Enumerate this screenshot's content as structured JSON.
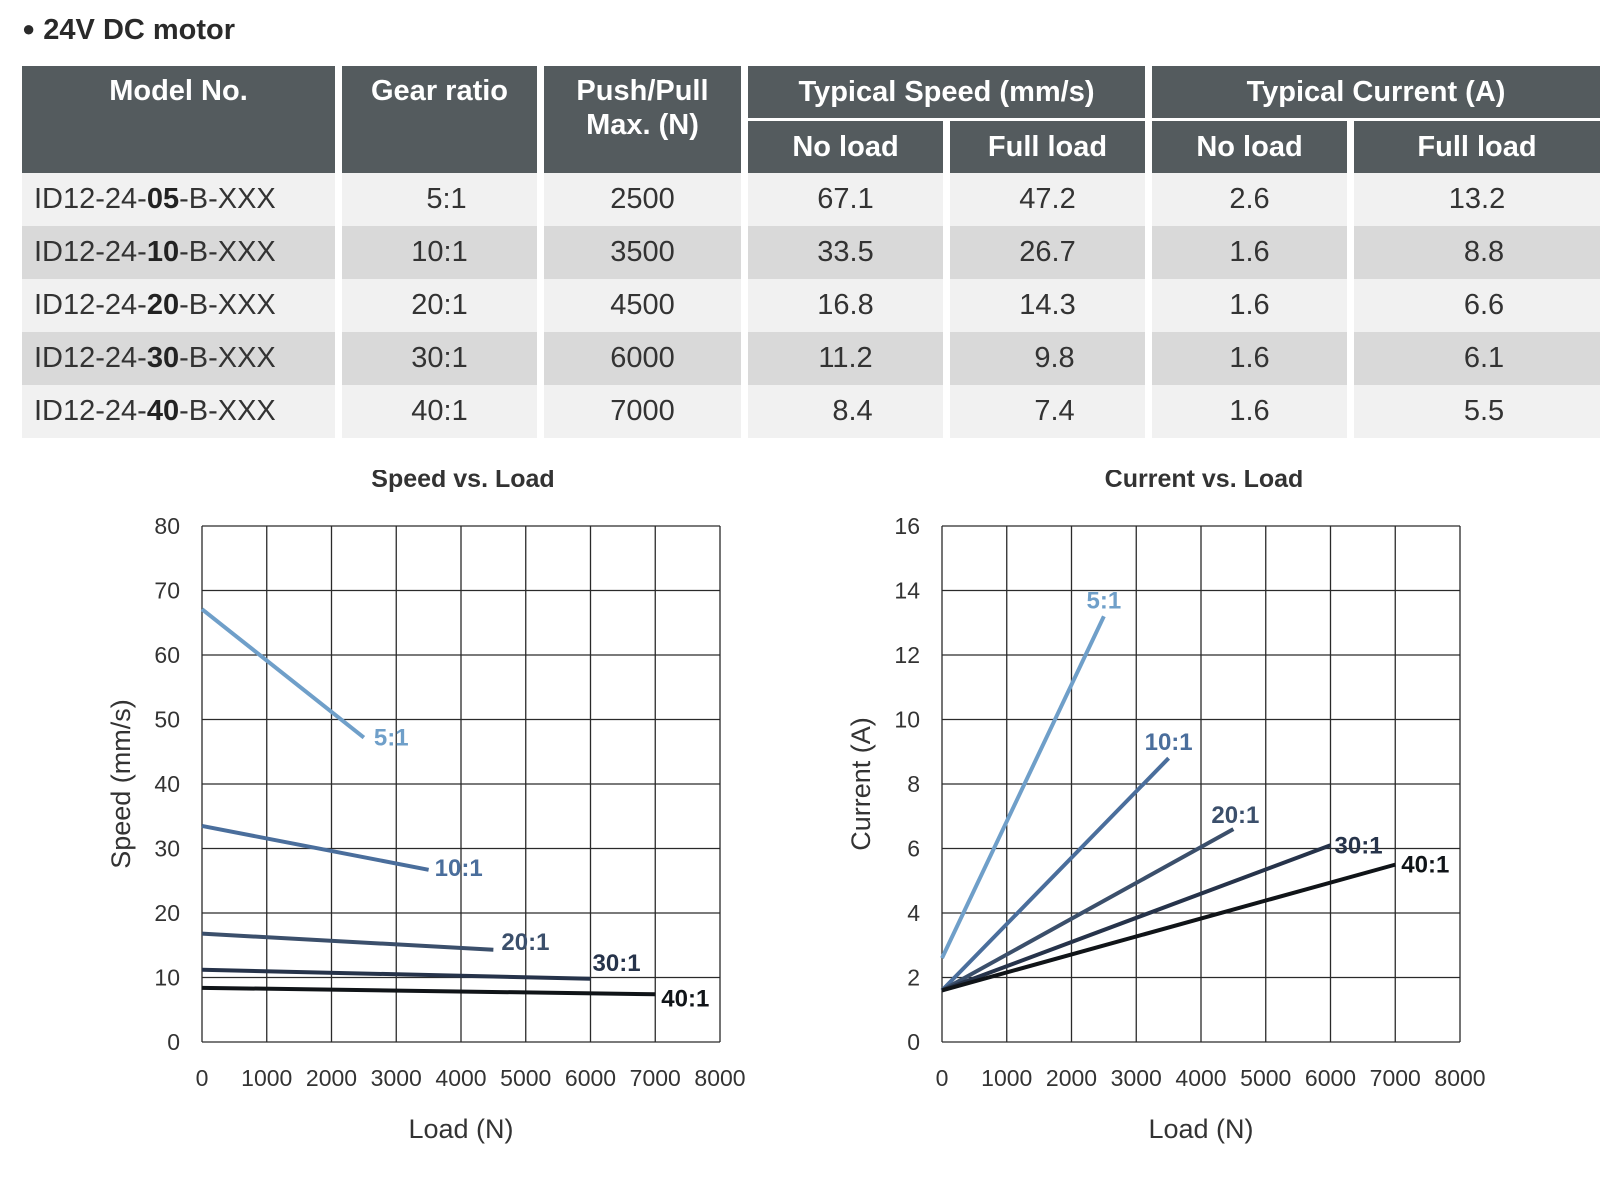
{
  "heading": "24V DC motor",
  "table": {
    "headers": {
      "model": "Model No.",
      "gear": "Gear ratio",
      "push_line1": "Push/Pull",
      "push_line2": "Max. (N)",
      "speed_group": "Typical Speed (mm/s)",
      "current_group": "Typical Current (A)",
      "no_load": "No load",
      "full_load": "Full load"
    },
    "rows": [
      {
        "model_prefix": "ID12-24-",
        "model_code": "05",
        "model_suffix": "-B-XXX",
        "gear": "5:1",
        "push": "2500",
        "speed_no": "67.1",
        "speed_full": "47.2",
        "current_no": "2.6",
        "current_full": "13.2"
      },
      {
        "model_prefix": "ID12-24-",
        "model_code": "10",
        "model_suffix": "-B-XXX",
        "gear": "10:1",
        "push": "3500",
        "speed_no": "33.5",
        "speed_full": "26.7",
        "current_no": "1.6",
        "current_full": "8.8"
      },
      {
        "model_prefix": "ID12-24-",
        "model_code": "20",
        "model_suffix": "-B-XXX",
        "gear": "20:1",
        "push": "4500",
        "speed_no": "16.8",
        "speed_full": "14.3",
        "current_no": "1.6",
        "current_full": "6.6"
      },
      {
        "model_prefix": "ID12-24-",
        "model_code": "30",
        "model_suffix": "-B-XXX",
        "gear": "30:1",
        "push": "6000",
        "speed_no": "11.2",
        "speed_full": "9.8",
        "current_no": "1.6",
        "current_full": "6.1"
      },
      {
        "model_prefix": "ID12-24-",
        "model_code": "40",
        "model_suffix": "-B-XXX",
        "gear": "40:1",
        "push": "7000",
        "speed_no": "8.4",
        "speed_full": "7.4",
        "current_no": "1.6",
        "current_full": "5.5"
      }
    ]
  },
  "colors": {
    "5:1": "#6f9fc9",
    "10:1": "#4a6e9c",
    "20:1": "#3b4f6b",
    "30:1": "#26334a",
    "40:1": "#101418",
    "header_bg": "#545b5e",
    "row_light": "#f1f1f1",
    "row_dark": "#d9d9d9"
  },
  "chart_data": [
    {
      "id": "speed",
      "type": "line",
      "title": "Speed vs. Load",
      "xlabel": "Load (N)",
      "ylabel": "Speed (mm/s)",
      "xlim": [
        0,
        8000
      ],
      "ylim": [
        0,
        80
      ],
      "xticks": [
        0,
        1000,
        2000,
        3000,
        4000,
        5000,
        6000,
        7000,
        8000
      ],
      "yticks": [
        0,
        10,
        20,
        30,
        40,
        50,
        60,
        70,
        80
      ],
      "grid": true,
      "series": [
        {
          "name": "5:1",
          "x": [
            0,
            2500
          ],
          "y": [
            67.1,
            47.2
          ]
        },
        {
          "name": "10:1",
          "x": [
            0,
            3500
          ],
          "y": [
            33.5,
            26.7
          ]
        },
        {
          "name": "20:1",
          "x": [
            0,
            4500
          ],
          "y": [
            16.8,
            14.3
          ]
        },
        {
          "name": "30:1",
          "x": [
            0,
            6000
          ],
          "y": [
            11.2,
            9.8
          ]
        },
        {
          "name": "40:1",
          "x": [
            0,
            7000
          ],
          "y": [
            8.4,
            7.4
          ]
        }
      ]
    },
    {
      "id": "current",
      "type": "line",
      "title": "Current  vs. Load",
      "xlabel": "Load (N)",
      "ylabel": "Current (A)",
      "xlim": [
        0,
        8000
      ],
      "ylim": [
        0,
        16
      ],
      "xticks": [
        0,
        1000,
        2000,
        3000,
        4000,
        5000,
        6000,
        7000,
        8000
      ],
      "yticks": [
        0,
        2,
        4,
        6,
        8,
        10,
        12,
        14,
        16
      ],
      "grid": true,
      "series": [
        {
          "name": "5:1",
          "x": [
            0,
            2500
          ],
          "y": [
            2.6,
            13.2
          ]
        },
        {
          "name": "10:1",
          "x": [
            0,
            3500
          ],
          "y": [
            1.6,
            8.8
          ]
        },
        {
          "name": "20:1",
          "x": [
            0,
            4500
          ],
          "y": [
            1.6,
            6.6
          ]
        },
        {
          "name": "30:1",
          "x": [
            0,
            6000
          ],
          "y": [
            1.6,
            6.1
          ]
        },
        {
          "name": "40:1",
          "x": [
            0,
            7000
          ],
          "y": [
            1.6,
            5.5
          ]
        }
      ]
    }
  ]
}
